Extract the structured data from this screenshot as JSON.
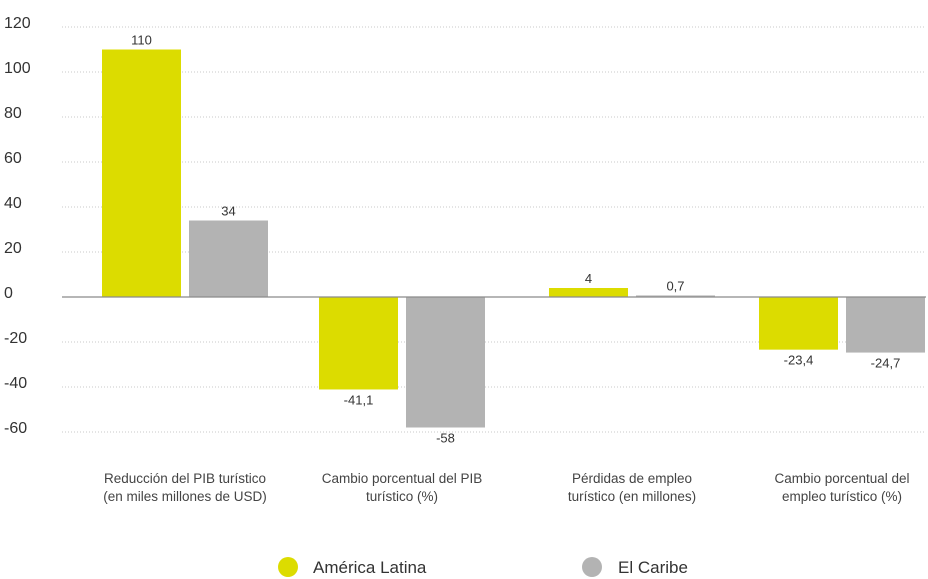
{
  "chart_data": {
    "type": "bar",
    "categories": [
      [
        "Reducción del PIB turístico",
        "(en miles millones de USD)"
      ],
      [
        "Cambio porcentual del PIB",
        "turístico (%)"
      ],
      [
        "Pérdidas de empleo",
        "turístico (en millones)"
      ],
      [
        "Cambio porcentual del",
        "empleo turístico (%)"
      ]
    ],
    "series": [
      {
        "name": "América Latina",
        "color": "#dcdc00",
        "values": [
          110,
          -41.1,
          4,
          -23.4
        ],
        "labels": [
          "110",
          "-41,1",
          "4",
          "-23,4"
        ]
      },
      {
        "name": "El Caribe",
        "color": "#b3b3b3",
        "values": [
          34,
          -58,
          0.7,
          -24.7
        ],
        "labels": [
          "34",
          "-58",
          "0,7",
          "-24,7"
        ]
      }
    ],
    "yticks": [
      120,
      100,
      80,
      60,
      40,
      20,
      0,
      -20,
      -40,
      -60
    ],
    "ylim": [
      -60,
      120
    ],
    "grid": true,
    "legend_position": "bottom-center"
  }
}
